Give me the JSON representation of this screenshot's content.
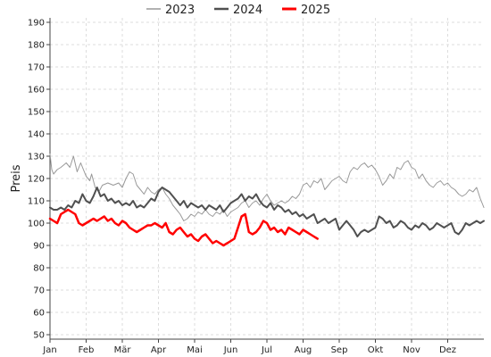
{
  "chart_data": {
    "type": "line",
    "title": "",
    "xlabel": "",
    "ylabel": "Preis",
    "ylim": [
      48,
      192
    ],
    "xlim": [
      0,
      12
    ],
    "yticks": [
      50,
      60,
      70,
      80,
      90,
      100,
      110,
      120,
      130,
      140,
      150,
      160,
      170,
      180,
      190
    ],
    "categories": [
      "Jan",
      "Feb",
      "Mär",
      "Apr",
      "Mai",
      "Jun",
      "Jul",
      "Aug",
      "Sep",
      "Okt",
      "Nov",
      "Dez"
    ],
    "grid": true,
    "legend_position": "top-center",
    "series": [
      {
        "name": "2023",
        "color": "#999999",
        "width": 1,
        "x": [
          0,
          0.05,
          0.1,
          0.2,
          0.3,
          0.45,
          0.55,
          0.65,
          0.75,
          0.85,
          0.9,
          1.0,
          1.1,
          1.15,
          1.25,
          1.35,
          1.45,
          1.6,
          1.75,
          1.9,
          2.0,
          2.1,
          2.2,
          2.3,
          2.4,
          2.5,
          2.6,
          2.7,
          2.8,
          2.9,
          3.0,
          3.1,
          3.2,
          3.3,
          3.4,
          3.5,
          3.6,
          3.7,
          3.8,
          3.9,
          4.0,
          4.1,
          4.2,
          4.3,
          4.4,
          4.5,
          4.6,
          4.7,
          4.8,
          4.9,
          5.0,
          5.1,
          5.2,
          5.3,
          5.4,
          5.5,
          5.6,
          5.7,
          5.8,
          5.9,
          6.0,
          6.1,
          6.2,
          6.3,
          6.4,
          6.5,
          6.6,
          6.7,
          6.8,
          6.9,
          7.0,
          7.1,
          7.2,
          7.3,
          7.4,
          7.5,
          7.6,
          7.7,
          7.8,
          7.9,
          8.0,
          8.1,
          8.2,
          8.3,
          8.4,
          8.5,
          8.6,
          8.7,
          8.8,
          8.9,
          9.0,
          9.1,
          9.2,
          9.3,
          9.4,
          9.5,
          9.6,
          9.7,
          9.8,
          9.9,
          10.0,
          10.1,
          10.2,
          10.3,
          10.4,
          10.5,
          10.6,
          10.7,
          10.8,
          10.9,
          11.0,
          11.1,
          11.2,
          11.3,
          11.4,
          11.5,
          11.6,
          11.7,
          11.8,
          11.9,
          12.0
        ],
        "values": [
          131,
          124,
          122,
          124,
          125,
          127,
          125,
          130,
          123,
          127,
          125,
          121,
          119,
          122,
          116,
          114,
          117,
          118,
          117,
          118,
          116,
          120,
          123,
          122,
          117,
          115,
          113,
          116,
          114,
          113,
          115,
          116,
          113,
          111,
          108,
          106,
          104,
          101,
          102,
          104,
          103,
          105,
          104,
          106,
          104,
          103,
          105,
          104,
          106,
          103,
          105,
          106,
          107,
          109,
          110,
          107,
          109,
          110,
          108,
          111,
          113,
          110,
          108,
          109,
          110,
          109,
          110,
          112,
          111,
          113,
          117,
          118,
          116,
          119,
          118,
          120,
          115,
          117,
          119,
          120,
          121,
          119,
          118,
          123,
          125,
          124,
          126,
          127,
          125,
          126,
          124,
          121,
          117,
          119,
          122,
          120,
          125,
          124,
          127,
          128,
          125,
          124,
          120,
          122,
          119,
          117,
          116,
          118,
          119,
          117,
          118,
          116,
          115,
          113,
          112,
          113,
          115,
          114,
          116,
          111,
          107
        ]
      },
      {
        "name": "2024",
        "color": "#505050",
        "width": 2,
        "x": [
          0,
          0.1,
          0.2,
          0.3,
          0.4,
          0.5,
          0.6,
          0.7,
          0.8,
          0.9,
          1.0,
          1.1,
          1.2,
          1.3,
          1.4,
          1.5,
          1.6,
          1.7,
          1.8,
          1.9,
          2.0,
          2.1,
          2.2,
          2.3,
          2.4,
          2.5,
          2.6,
          2.7,
          2.8,
          2.9,
          3.0,
          3.1,
          3.2,
          3.3,
          3.4,
          3.5,
          3.6,
          3.7,
          3.8,
          3.9,
          4.0,
          4.1,
          4.2,
          4.3,
          4.4,
          4.5,
          4.6,
          4.7,
          4.8,
          4.9,
          5.0,
          5.1,
          5.2,
          5.3,
          5.4,
          5.5,
          5.6,
          5.7,
          5.8,
          5.9,
          6.0,
          6.1,
          6.2,
          6.3,
          6.4,
          6.5,
          6.6,
          6.7,
          6.8,
          6.9,
          7.0,
          7.1,
          7.2,
          7.3,
          7.4,
          7.5,
          7.6,
          7.7,
          7.8,
          7.9,
          8.0,
          8.1,
          8.2,
          8.3,
          8.4,
          8.5,
          8.6,
          8.7,
          8.8,
          8.9,
          9.0,
          9.1,
          9.2,
          9.3,
          9.4,
          9.5,
          9.6,
          9.7,
          9.8,
          9.9,
          10.0,
          10.1,
          10.2,
          10.3,
          10.4,
          10.5,
          10.6,
          10.7,
          10.8,
          10.9,
          11.0,
          11.1,
          11.2,
          11.3,
          11.4,
          11.5,
          11.6,
          11.7,
          11.8,
          11.9,
          12.0
        ],
        "values": [
          107,
          106,
          106,
          107,
          106,
          108,
          107,
          110,
          109,
          113,
          110,
          109,
          112,
          116,
          112,
          113,
          110,
          111,
          109,
          110,
          108,
          109,
          108,
          110,
          107,
          108,
          107,
          109,
          111,
          110,
          114,
          116,
          115,
          114,
          112,
          110,
          108,
          110,
          107,
          109,
          108,
          107,
          108,
          106,
          108,
          107,
          106,
          108,
          105,
          107,
          109,
          110,
          111,
          113,
          110,
          112,
          111,
          113,
          110,
          108,
          107,
          109,
          106,
          108,
          107,
          105,
          106,
          104,
          105,
          103,
          104,
          102,
          103,
          104,
          100,
          101,
          102,
          100,
          101,
          102,
          97,
          99,
          101,
          99,
          97,
          94,
          96,
          97,
          96,
          97,
          98,
          103,
          102,
          100,
          101,
          98,
          99,
          101,
          100,
          98,
          97,
          99,
          98,
          100,
          99,
          97,
          98,
          100,
          99,
          98,
          99,
          100,
          96,
          95,
          97,
          100,
          99,
          100,
          101,
          100,
          101
        ]
      },
      {
        "name": "2025",
        "color": "#ff0000",
        "width": 2.5,
        "x": [
          0,
          0.1,
          0.2,
          0.3,
          0.4,
          0.5,
          0.6,
          0.7,
          0.8,
          0.9,
          1.0,
          1.1,
          1.2,
          1.3,
          1.4,
          1.5,
          1.6,
          1.7,
          1.8,
          1.9,
          2.0,
          2.1,
          2.2,
          2.3,
          2.4,
          2.5,
          2.6,
          2.7,
          2.8,
          2.9,
          3.0,
          3.1,
          3.2,
          3.3,
          3.4,
          3.5,
          3.6,
          3.7,
          3.8,
          3.9,
          4.0,
          4.1,
          4.2,
          4.3,
          4.4,
          4.5,
          4.6,
          4.7,
          4.8,
          4.9,
          5.0,
          5.1,
          5.2,
          5.3,
          5.4,
          5.5,
          5.6,
          5.7,
          5.8,
          5.9,
          6.0,
          6.1,
          6.2,
          6.3,
          6.4,
          6.5,
          6.6,
          6.7,
          6.8,
          6.9,
          7.0,
          7.1,
          7.2,
          7.3,
          7.4
        ],
        "values": [
          102,
          101,
          100,
          104,
          105,
          106,
          105,
          104,
          100,
          99,
          100,
          101,
          102,
          101,
          102,
          103,
          101,
          102,
          100,
          99,
          101,
          100,
          98,
          97,
          96,
          97,
          98,
          99,
          99,
          100,
          99,
          98,
          100,
          96,
          95,
          97,
          98,
          96,
          94,
          95,
          93,
          92,
          94,
          95,
          93,
          91,
          92,
          91,
          90,
          91,
          92,
          93,
          98,
          103,
          104,
          96,
          95,
          96,
          98,
          101,
          100,
          97,
          98,
          96,
          97,
          95,
          98,
          97,
          96,
          95,
          97,
          96,
          95,
          94,
          93
        ]
      }
    ]
  }
}
